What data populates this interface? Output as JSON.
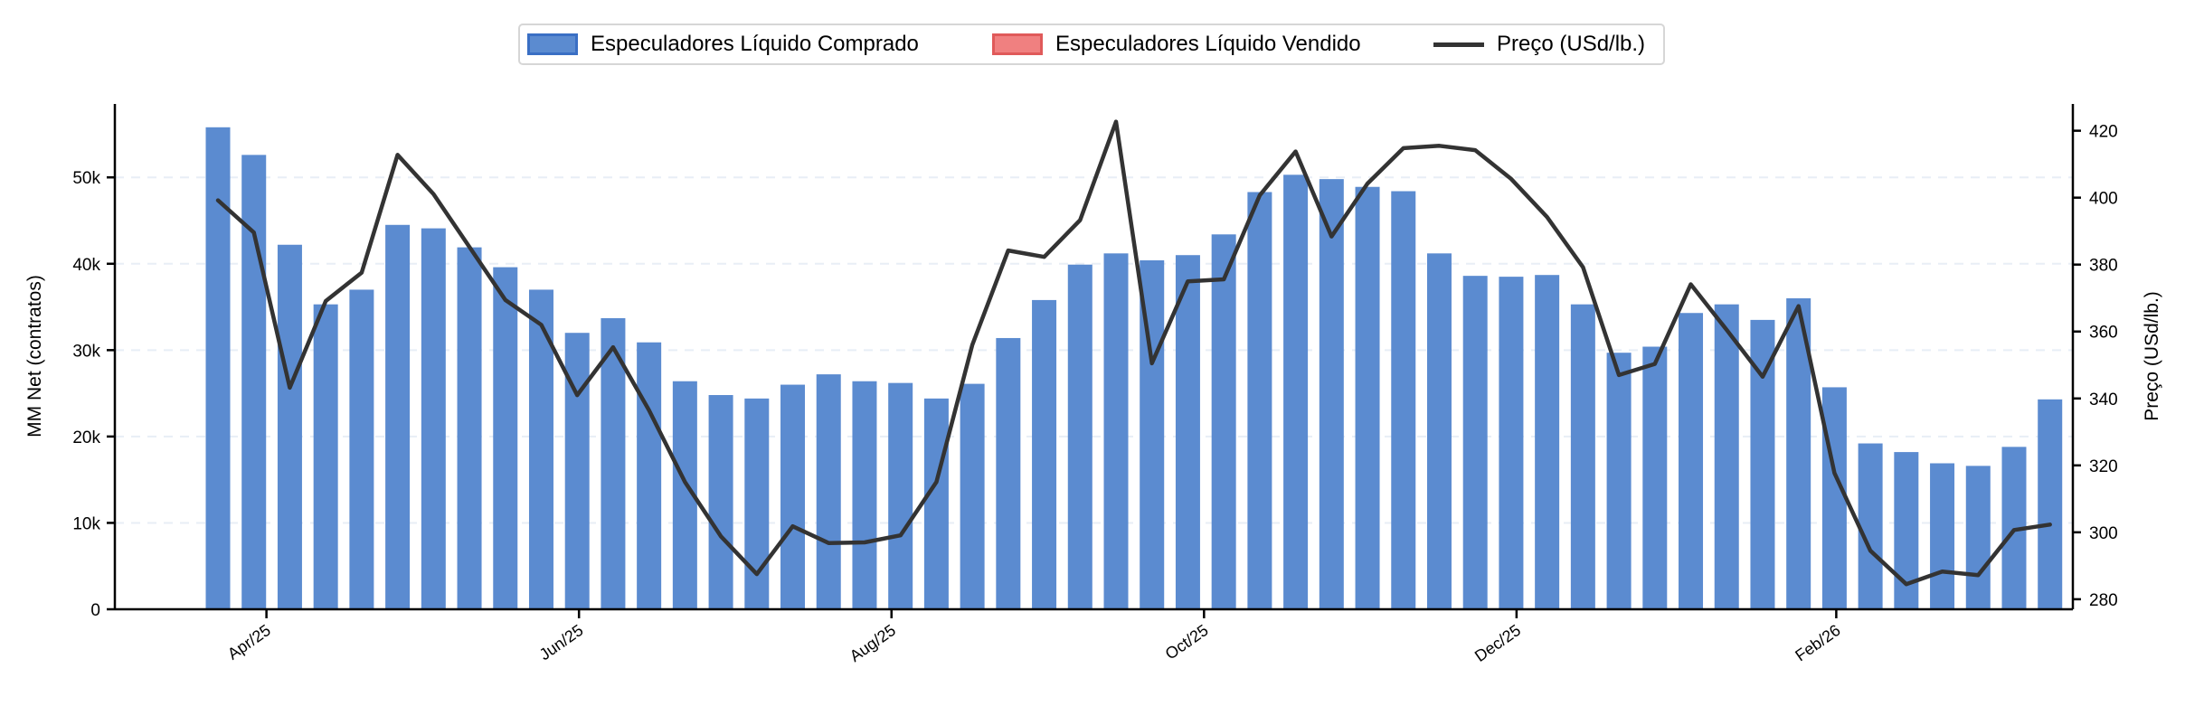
{
  "legend": {
    "long_label": "Especuladores Líquido Comprado",
    "short_label": "Especuladores Líquido Vendido",
    "price_label": "Preço (USd/lb.)"
  },
  "colors": {
    "long": "#5b8bd0",
    "long_edge": "#3a6fc4",
    "short": "#f08080",
    "short_edge": "#e05a5a",
    "price": "#333333",
    "grid": "#e8eef6"
  },
  "chart_data": {
    "type": "bar",
    "x_tick_labels": [
      "Apr/25",
      "Jun/25",
      "Aug/25",
      "Oct/25",
      "Dec/25",
      "Feb/26"
    ],
    "x_tick_at_bar": [
      1.35,
      10.05,
      18.75,
      27.45,
      36.15,
      45.05
    ],
    "left_axis": {
      "label": "MM Net (contratos)",
      "ylim": [
        0,
        58500
      ],
      "ticks": [
        0,
        10000,
        20000,
        30000,
        40000,
        50000
      ],
      "tick_labels": [
        "0",
        "10k",
        "20k",
        "30k",
        "40k",
        "50k"
      ]
    },
    "right_axis": {
      "label": "Preço (USd/lb.)",
      "ylim": [
        277,
        428
      ],
      "ticks": [
        280,
        300,
        320,
        340,
        360,
        380,
        400,
        420
      ],
      "tick_labels": [
        "280",
        "300",
        "320",
        "340",
        "360",
        "380",
        "400",
        "420"
      ]
    },
    "grid": "horizontal dashed",
    "legend_position": "top-center",
    "series": [
      {
        "name": "Especuladores Líquido Comprado",
        "type": "bar",
        "values": [
          55800,
          52600,
          42200,
          35300,
          37000,
          44500,
          44100,
          41900,
          39600,
          37000,
          32000,
          33700,
          30900,
          26400,
          24800,
          24400,
          26000,
          27200,
          26400,
          26200,
          24400,
          26100,
          31400,
          35800,
          39900,
          41200,
          40400,
          41000,
          43400,
          48300,
          50300,
          49800,
          48900,
          48400,
          41200,
          38600,
          38500,
          38700,
          35300,
          29700,
          30400,
          34300,
          35300,
          33500,
          36000,
          25700,
          19200,
          18200,
          16900,
          16600,
          18800,
          24300
        ]
      },
      {
        "name": "Especuladores Líquido Vendido",
        "type": "bar",
        "values": [
          0,
          0,
          0,
          0,
          0,
          0,
          0,
          0,
          0,
          0,
          0,
          0,
          0,
          0,
          0,
          0,
          0,
          0,
          0,
          0,
          0,
          0,
          0,
          0,
          0,
          0,
          0,
          0,
          0,
          0,
          0,
          0,
          0,
          0,
          0,
          0,
          0,
          0,
          0,
          0,
          0,
          0,
          0,
          0,
          0,
          0,
          0,
          0,
          0,
          0,
          0,
          0
        ]
      },
      {
        "name": "Preço (USd/lb.)",
        "type": "line",
        "axis": "right",
        "values": [
          399.2,
          389.6,
          343.2,
          369.1,
          377.6,
          412.8,
          401.1,
          385.3,
          369.4,
          362.0,
          341.0,
          355.3,
          336.5,
          315.0,
          298.8,
          287.5,
          301.8,
          296.8,
          297.0,
          299.1,
          315.0,
          356.0,
          384.2,
          382.3,
          393.3,
          422.7,
          350.5,
          375.0,
          375.6,
          400.7,
          413.8,
          388.4,
          404.2,
          414.8,
          415.5,
          414.2,
          405.6,
          394.2,
          379.2,
          347.0,
          350.3,
          374.1,
          360.5,
          346.5,
          367.6,
          317.7,
          294.5,
          284.5,
          288.3,
          287.2,
          300.7,
          302.3
        ]
      }
    ]
  }
}
